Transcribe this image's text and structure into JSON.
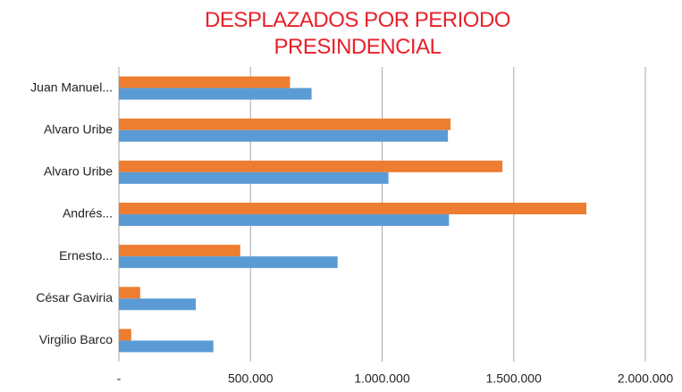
{
  "chart_data": {
    "type": "hbar",
    "title": "DESPLAZADOS POR PERIODO PRESINDENCIAL",
    "categories": [
      "Juan Manuel...",
      "Alvaro Uribe",
      "Alvaro Uribe",
      "Andrés...",
      "Ernesto...",
      "César Gaviria",
      "Virgilio Barco"
    ],
    "series": [
      {
        "color": "#ed7d31",
        "values": [
          650000,
          1260000,
          1457000,
          1776000,
          461000,
          81000,
          47000
        ]
      },
      {
        "color": "#5b9bd5",
        "values": [
          732000,
          1250000,
          1024000,
          1254000,
          831000,
          292000,
          359000
        ]
      }
    ],
    "xlim": [
      0,
      2000000
    ],
    "xticks": [
      {
        "value": 0,
        "label": "-"
      },
      {
        "value": 500000,
        "label": "500.000"
      },
      {
        "value": 1000000,
        "label": "1.000.000"
      },
      {
        "value": 1500000,
        "label": "1.500.000"
      },
      {
        "value": 2000000,
        "label": "2.000.000"
      }
    ],
    "grid": true
  }
}
